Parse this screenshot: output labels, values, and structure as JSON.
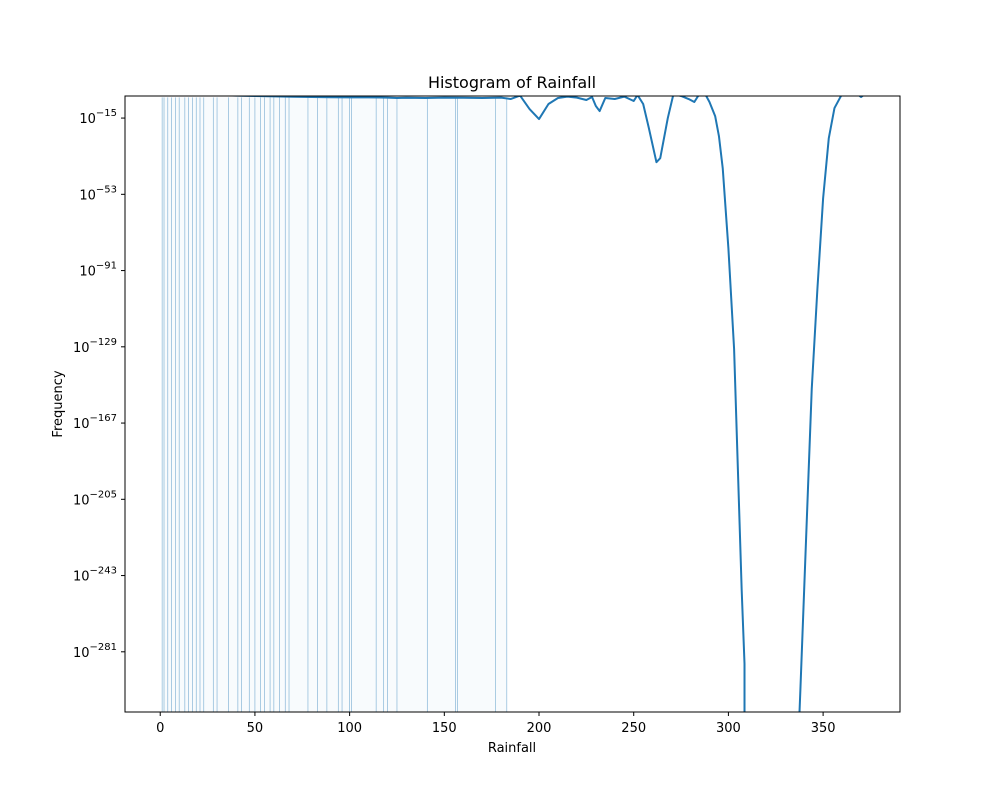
{
  "chart_data": {
    "type": "histogram",
    "title": "Histogram of Rainfall",
    "xlabel": "Rainfall",
    "ylabel": "Frequency",
    "y_scale": "log10",
    "xlim": [
      -18.6,
      390.6
    ],
    "ylim_log10": [
      -311,
      -4
    ],
    "grid": false,
    "x_ticks": [
      {
        "value": 0,
        "label": "0"
      },
      {
        "value": 50,
        "label": "50"
      },
      {
        "value": 100,
        "label": "100"
      },
      {
        "value": 150,
        "label": "150"
      },
      {
        "value": 200,
        "label": "200"
      },
      {
        "value": 250,
        "label": "250"
      },
      {
        "value": 300,
        "label": "300"
      },
      {
        "value": 350,
        "label": "350"
      }
    ],
    "y_ticks": [
      {
        "exp": -15,
        "base": "10",
        "sup": "−15"
      },
      {
        "exp": -53,
        "base": "10",
        "sup": "−53"
      },
      {
        "exp": -91,
        "base": "10",
        "sup": "−91"
      },
      {
        "exp": -129,
        "base": "10",
        "sup": "−129"
      },
      {
        "exp": -167,
        "base": "10",
        "sup": "−167"
      },
      {
        "exp": -205,
        "base": "10",
        "sup": "−205"
      },
      {
        "exp": -243,
        "base": "10",
        "sup": "−243"
      },
      {
        "exp": -281,
        "base": "10",
        "sup": "−281"
      }
    ],
    "histogram_bin_edges": [
      1,
      2,
      4,
      6,
      8,
      10,
      13,
      15,
      17,
      19,
      21,
      23,
      28,
      30,
      36,
      41,
      43,
      47,
      50,
      53,
      55,
      58,
      60,
      63,
      66,
      68,
      78,
      83,
      88,
      94,
      96,
      100,
      101,
      114,
      118,
      120,
      125,
      141,
      156,
      157,
      177,
      183
    ],
    "histogram_color": "#1f77b4",
    "density_line": {
      "color": "#1f77b4",
      "points": [
        [
          0,
          -2
        ],
        [
          3,
          -2.5
        ],
        [
          10,
          -2.8
        ],
        [
          20,
          -3.2
        ],
        [
          30,
          -3.5
        ],
        [
          40,
          -3.8
        ],
        [
          50,
          -4
        ],
        [
          60,
          -4.2
        ],
        [
          70,
          -4.4
        ],
        [
          80,
          -4.5
        ],
        [
          90,
          -4.6
        ],
        [
          100,
          -4.7
        ],
        [
          110,
          -4.7
        ],
        [
          120,
          -4.8
        ],
        [
          125,
          -5
        ],
        [
          130,
          -4.9
        ],
        [
          140,
          -5
        ],
        [
          150,
          -4.8
        ],
        [
          160,
          -4.9
        ],
        [
          170,
          -5
        ],
        [
          180,
          -4.8
        ],
        [
          185,
          -5.5
        ],
        [
          190,
          -3.8
        ],
        [
          195,
          -10.5
        ],
        [
          200,
          -15.5
        ],
        [
          205,
          -8
        ],
        [
          210,
          -5
        ],
        [
          215,
          -4.3
        ],
        [
          220,
          -4.8
        ],
        [
          225,
          -6
        ],
        [
          228,
          -4.5
        ],
        [
          230,
          -9
        ],
        [
          232,
          -11.5
        ],
        [
          235,
          -5
        ],
        [
          240,
          -5.5
        ],
        [
          245,
          -4.3
        ],
        [
          250,
          -6.5
        ],
        [
          252,
          -3.5
        ],
        [
          255,
          -8
        ],
        [
          258,
          -20
        ],
        [
          262,
          -37
        ],
        [
          264,
          -35
        ],
        [
          268,
          -15
        ],
        [
          271,
          -3
        ],
        [
          275,
          -4
        ],
        [
          279,
          -5.5
        ],
        [
          282,
          -7
        ],
        [
          284,
          -4
        ],
        [
          286,
          -3
        ],
        [
          288,
          -3.5
        ],
        [
          290,
          -7
        ],
        [
          293,
          -14
        ],
        [
          295,
          -24
        ],
        [
          297,
          -40
        ],
        [
          300,
          -80
        ],
        [
          303,
          -130
        ],
        [
          305,
          -190
        ],
        [
          307,
          -250
        ],
        [
          308.5,
          -287
        ],
        [
          308.5,
          -312
        ],
        [
          337.5,
          -312
        ],
        [
          338,
          -300
        ],
        [
          340,
          -250
        ],
        [
          342,
          -200
        ],
        [
          344,
          -150
        ],
        [
          347,
          -100
        ],
        [
          350,
          -55
        ],
        [
          353,
          -25
        ],
        [
          356,
          -10
        ],
        [
          360,
          -3
        ],
        [
          364,
          -2
        ],
        [
          368,
          -3
        ],
        [
          370,
          -4.5
        ],
        [
          371.5,
          -3.5
        ]
      ]
    }
  }
}
